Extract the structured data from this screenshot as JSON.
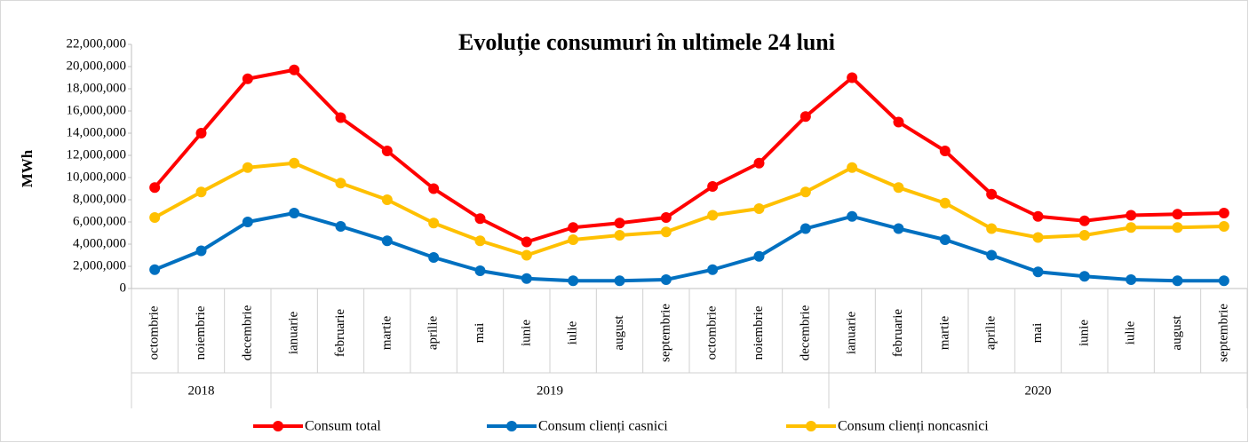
{
  "chart_data": {
    "type": "line",
    "title": "Evoluție consumuri în ultimele 24 luni",
    "y_label": "MWh",
    "categories": [
      "octombrie",
      "noiembrie",
      "decembrie",
      "ianuarie",
      "februarie",
      "martie",
      "aprilie",
      "mai",
      "iunie",
      "iulie",
      "august",
      "septembrie",
      "octombrie",
      "noiembrie",
      "decembrie",
      "ianuarie",
      "februarie",
      "martie",
      "aprilie",
      "mai",
      "iunie",
      "iulie",
      "august",
      "septembrie"
    ],
    "x_groups": [
      {
        "label": "2018",
        "span": 3
      },
      {
        "label": "2019",
        "span": 12
      },
      {
        "label": "2020",
        "span": 9
      }
    ],
    "series": [
      {
        "name": "Consum total",
        "color": "#ff0000",
        "values": [
          9100000,
          14000000,
          18900000,
          19700000,
          15400000,
          12400000,
          9000000,
          6300000,
          4200000,
          5500000,
          5900000,
          6400000,
          9200000,
          11300000,
          15500000,
          19000000,
          15000000,
          12400000,
          8500000,
          6500000,
          6100000,
          6600000,
          6700000,
          6800000
        ]
      },
      {
        "name": "Consum clienți casnici",
        "color": "#0070c0",
        "values": [
          1700000,
          3400000,
          6000000,
          6800000,
          5600000,
          4300000,
          2800000,
          1600000,
          900000,
          700000,
          700000,
          800000,
          1700000,
          2900000,
          5400000,
          6500000,
          5400000,
          4400000,
          3000000,
          1500000,
          1100000,
          800000,
          700000,
          700000
        ]
      },
      {
        "name": "Consum clienți noncasnici",
        "color": "#ffc000",
        "values": [
          6400000,
          8700000,
          10900000,
          11300000,
          9500000,
          8000000,
          5900000,
          4300000,
          3000000,
          4400000,
          4800000,
          5100000,
          6600000,
          7200000,
          8700000,
          10900000,
          9100000,
          7700000,
          5400000,
          4600000,
          4800000,
          5500000,
          5500000,
          5600000
        ]
      }
    ],
    "ylim": [
      0,
      22000000
    ],
    "yticks": [
      0,
      {
        "value": 2000000,
        "label": "2,000,000"
      },
      {
        "value": 4000000,
        "label": "4,000,000"
      },
      {
        "value": 6000000,
        "label": "6,000,000"
      },
      {
        "value": 8000000,
        "label": "8,000,000"
      },
      {
        "value": 10000000,
        "label": "10,000,000"
      },
      {
        "value": 12000000,
        "label": "12,000,000"
      },
      {
        "value": 14000000,
        "label": "14,000,000"
      },
      {
        "value": 16000000,
        "label": "16,000,000"
      },
      {
        "value": 18000000,
        "label": "18,000,000"
      },
      {
        "value": 20000000,
        "label": "20,000,000"
      },
      {
        "value": 22000000,
        "label": "22,000,000"
      }
    ],
    "legend": "bottom",
    "grid": false
  }
}
